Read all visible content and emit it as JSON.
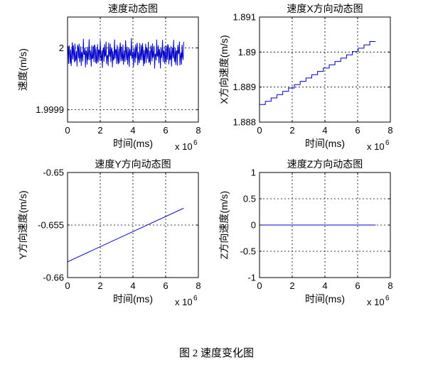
{
  "caption": "图 2  速度变化图",
  "chart_data": [
    {
      "type": "line",
      "title": "速度动态图",
      "xlabel": "时间(ms)",
      "ylabel": "速度(m/s)",
      "x_multiplier": "x 10",
      "x_exponent": "6",
      "xlim": [
        0,
        8
      ],
      "ylim": [
        1.99988,
        2.00005
      ],
      "xticks": [
        "0",
        "2",
        "4",
        "6",
        "8"
      ],
      "yticks": [
        {
          "v": 1.9999,
          "label": "1.9999"
        },
        {
          "v": 2.0,
          "label": "2"
        }
      ],
      "grid": true,
      "line_color": "#0000cc",
      "x_range": [
        0,
        7.1
      ],
      "y_center": 1.99999,
      "y_amplitude": 2e-05,
      "style": "oscillating"
    },
    {
      "type": "line",
      "title": "速度X方向动态图",
      "xlabel": "时间(ms)",
      "ylabel": "X方向速度(m/s)",
      "x_multiplier": "x 10",
      "x_exponent": "6",
      "xlim": [
        0,
        8
      ],
      "ylim": [
        1.888,
        1.891
      ],
      "xticks": [
        "0",
        "2",
        "4",
        "6",
        "8"
      ],
      "yticks": [
        {
          "v": 1.888,
          "label": "1.888"
        },
        {
          "v": 1.889,
          "label": "1.889"
        },
        {
          "v": 1.89,
          "label": "1.89"
        },
        {
          "v": 1.891,
          "label": "1.891"
        }
      ],
      "grid": true,
      "line_color": "#0000cc",
      "x": [
        0,
        7.1
      ],
      "y": [
        1.8885,
        1.8903
      ],
      "style": "staircase"
    },
    {
      "type": "line",
      "title": "速度Y方向动态图",
      "xlabel": "时间(ms)",
      "ylabel": "Y方向速度(m/s)",
      "x_multiplier": "x 10",
      "x_exponent": "6",
      "xlim": [
        0,
        8
      ],
      "ylim": [
        -0.66,
        -0.65
      ],
      "xticks": [
        "0",
        "2",
        "4",
        "6",
        "8"
      ],
      "yticks": [
        {
          "v": -0.66,
          "label": "-0.66"
        },
        {
          "v": -0.655,
          "label": "-0.655"
        },
        {
          "v": -0.65,
          "label": "-0.65"
        }
      ],
      "grid": true,
      "line_color": "#0000cc",
      "x": [
        0,
        7.1
      ],
      "y": [
        -0.6585,
        -0.6534
      ],
      "style": "linear"
    },
    {
      "type": "line",
      "title": "速度Z方向动态图",
      "xlabel": "时间(ms)",
      "ylabel": "Z方向速度(m/s)",
      "x_multiplier": "x 10",
      "x_exponent": "6",
      "xlim": [
        0,
        8
      ],
      "ylim": [
        -1,
        1
      ],
      "xticks": [
        "0",
        "2",
        "4",
        "6",
        "8"
      ],
      "yticks": [
        {
          "v": -1,
          "label": "-1"
        },
        {
          "v": -0.5,
          "label": "-0.5"
        },
        {
          "v": 0,
          "label": "0"
        },
        {
          "v": 0.5,
          "label": "0.5"
        },
        {
          "v": 1,
          "label": "1"
        }
      ],
      "grid": true,
      "line_color": "#0000cc",
      "x": [
        0,
        7.1
      ],
      "y": [
        0,
        0
      ],
      "style": "linear"
    }
  ]
}
